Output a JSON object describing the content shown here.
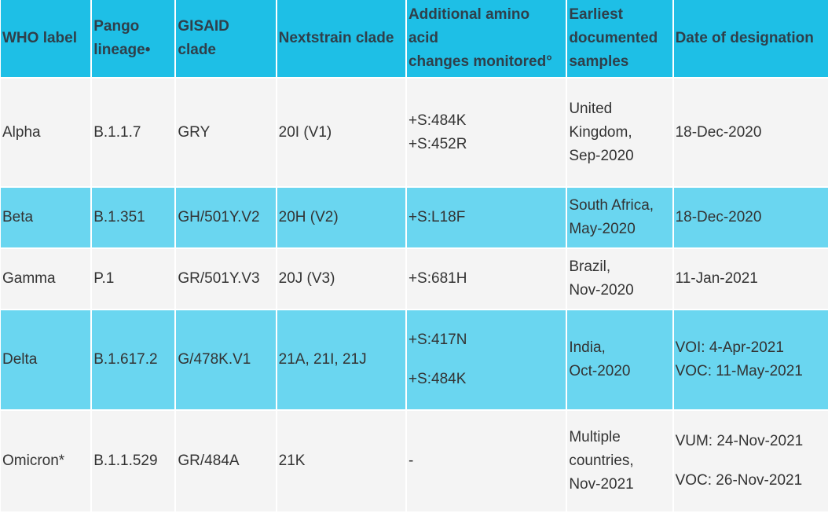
{
  "table": {
    "headers": [
      [
        "WHO label"
      ],
      [
        "Pango",
        "lineage•"
      ],
      [
        "GISAID",
        "clade"
      ],
      [
        "Nextstrain clade"
      ],
      [
        "Additional amino",
        "acid",
        "changes monitored°"
      ],
      [
        "Earliest",
        "documented",
        "samples"
      ],
      [
        "Date of designation"
      ]
    ],
    "rows": [
      {
        "who": "Alpha",
        "pango": "B.1.1.7",
        "gisaid": "GRY",
        "nextstrain": "20I (V1)",
        "aa": [
          "+S:484K",
          "+S:452R"
        ],
        "earliest": [
          "United",
          "Kingdom,",
          "Sep-2020"
        ],
        "date": [
          "18-Dec-2020"
        ]
      },
      {
        "who": "Beta",
        "pango": "B.1.351",
        "gisaid": "GH/501Y.V2",
        "nextstrain": "20H (V2)",
        "aa": [
          "+S:L18F"
        ],
        "earliest": [
          "South Africa,",
          "May-2020"
        ],
        "date": [
          "18-Dec-2020"
        ]
      },
      {
        "who": "Gamma",
        "pango": "P.1",
        "gisaid": "GR/501Y.V3",
        "nextstrain": "20J (V3)",
        "aa": [
          "+S:681H"
        ],
        "earliest": [
          "Brazil,",
          "Nov-2020"
        ],
        "date": [
          "11-Jan-2021"
        ]
      },
      {
        "who": "Delta",
        "pango": "B.1.617.2",
        "gisaid": "G/478K.V1",
        "nextstrain": "21A, 21I, 21J",
        "aa": [
          "+S:417N",
          "+S:484K"
        ],
        "earliest": [
          "India,",
          "Oct-2020"
        ],
        "date": [
          "VOI: 4-Apr-2021",
          "VOC: 11-May-2021"
        ]
      },
      {
        "who": "Omicron*",
        "pango": "B.1.1.529",
        "gisaid": "GR/484A",
        "nextstrain": "21K",
        "aa": [
          "-"
        ],
        "earliest": [
          "Multiple",
          "countries,",
          "Nov-2021"
        ],
        "date": [
          "VUM: 24-Nov-2021",
          "VOC: 26-Nov-2021"
        ]
      }
    ]
  }
}
